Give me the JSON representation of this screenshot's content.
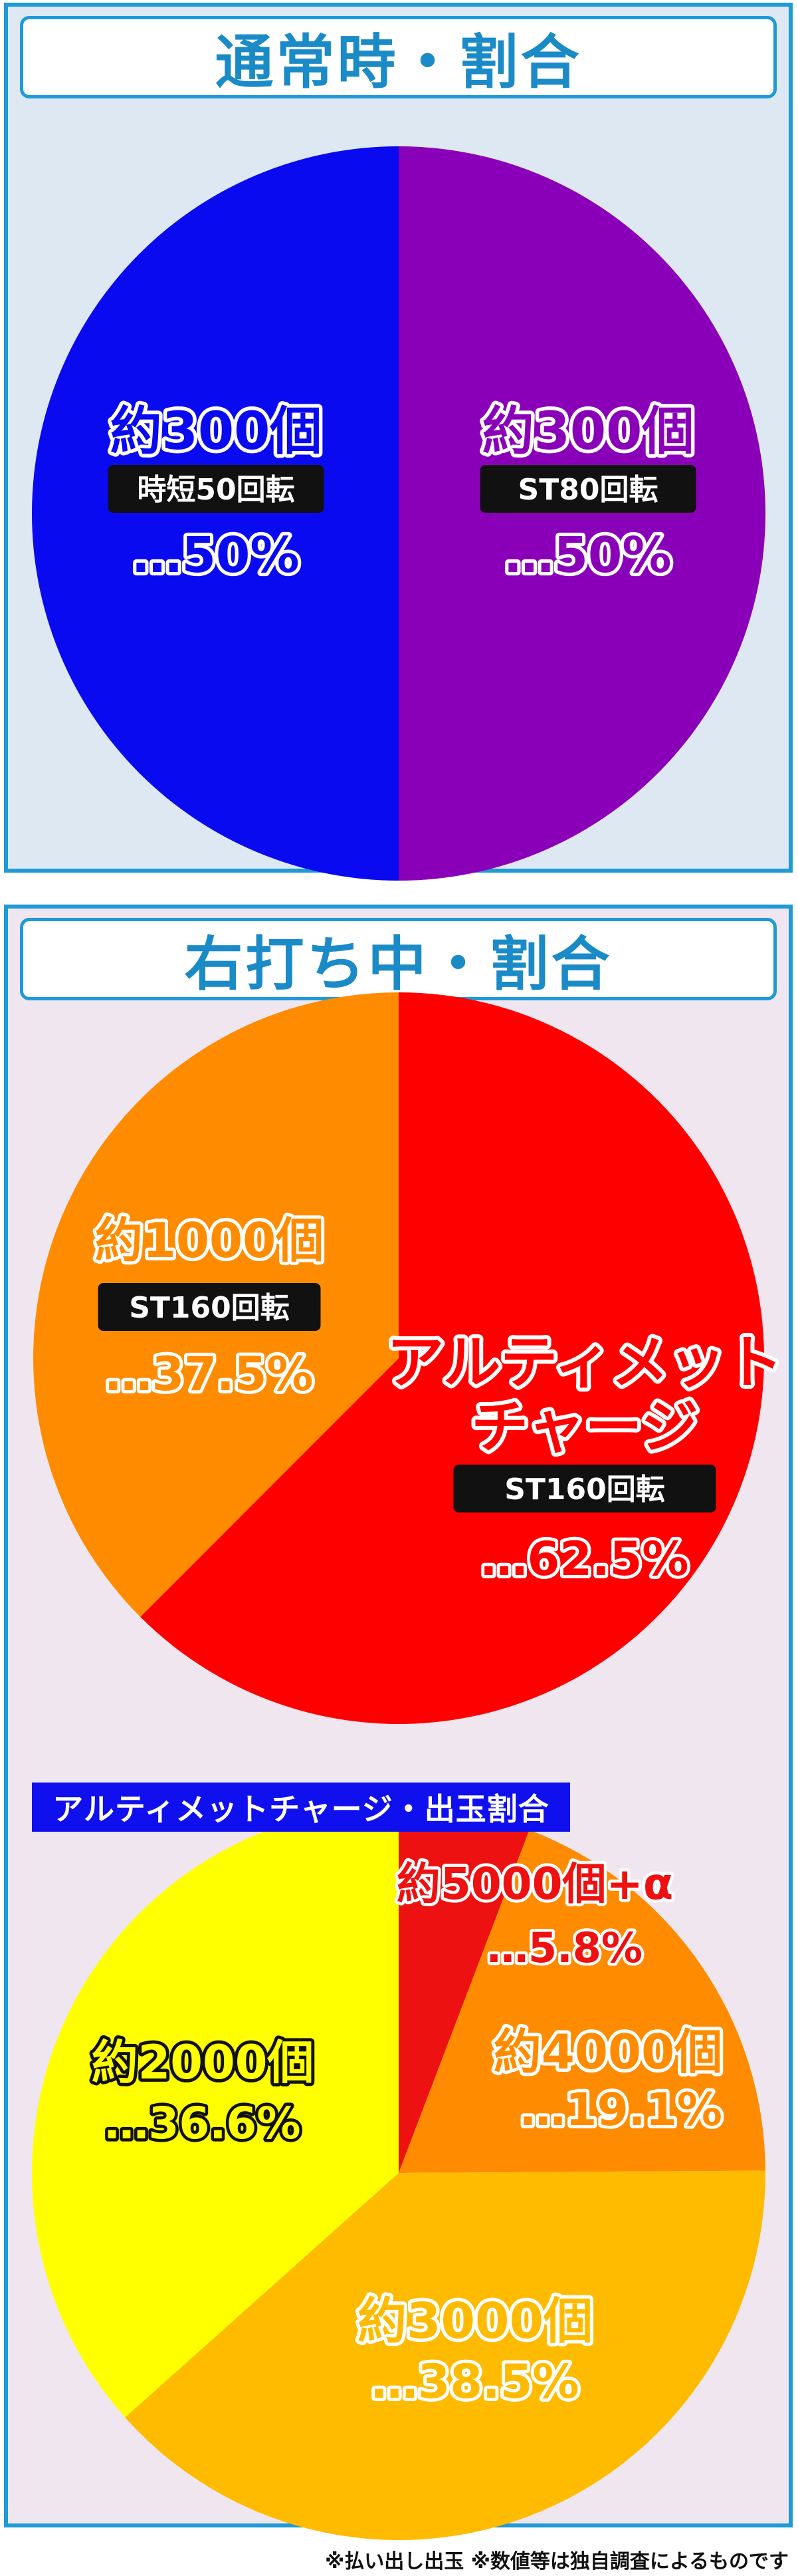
{
  "panels": {
    "normal": {
      "title": "通常時・割合"
    },
    "right": {
      "title": "右打ち中・割合"
    }
  },
  "chart_data": [
    {
      "type": "pie",
      "title": "通常時・割合",
      "slices": [
        {
          "amount": "約300個",
          "mode": "ST80回転",
          "percent_label": "…50%",
          "value": 50,
          "color": "#8a00b8"
        },
        {
          "amount": "約300個",
          "mode": "時短50回転",
          "percent_label": "…50%",
          "value": 50,
          "color": "#0a0af0"
        }
      ]
    },
    {
      "type": "pie",
      "title": "右打ち中・割合",
      "slices": [
        {
          "name": "アルティメットチャージ",
          "mode": "ST160回転",
          "percent_label": "…62.5%",
          "value": 62.5,
          "color": "#ff0000"
        },
        {
          "amount": "約1000個",
          "mode": "ST160回転",
          "percent_label": "…37.5%",
          "value": 37.5,
          "color": "#ff8c00"
        }
      ]
    },
    {
      "type": "pie",
      "title": "アルティメットチャージ・出玉割合",
      "slices": [
        {
          "amount": "約5000個+α",
          "percent_label": "…5.8%",
          "value": 5.8,
          "color": "#ee1111"
        },
        {
          "amount": "約4000個",
          "percent_label": "…19.1%",
          "value": 19.1,
          "color": "#ff8c00"
        },
        {
          "amount": "約3000個",
          "percent_label": "…38.5%",
          "value": 38.5,
          "color": "#ffbb00"
        },
        {
          "amount": "約2000個",
          "percent_label": "…36.6%",
          "value": 36.6,
          "color": "#ffff00"
        }
      ]
    }
  ],
  "footnote": "※払い出し出玉 ※数値等は独自調査によるものです"
}
